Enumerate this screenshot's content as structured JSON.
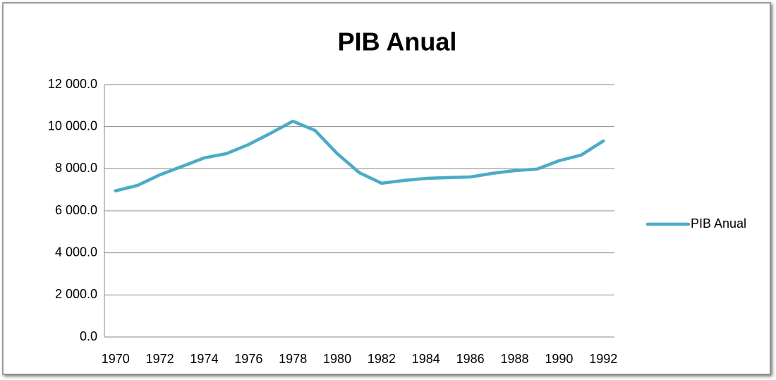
{
  "chart_data": {
    "type": "line",
    "title": "PIB Anual",
    "categories": [
      "1970",
      null,
      "1972",
      null,
      "1974",
      null,
      "1976",
      null,
      "1978",
      null,
      "1980",
      null,
      "1982",
      null,
      "1984",
      null,
      "1986",
      null,
      "1988",
      null,
      "1990",
      null,
      "1992"
    ],
    "series": [
      {
        "name": "PIB Anual",
        "color": "#4bacc6",
        "values": [
          6950,
          7210,
          7710,
          8110,
          8515,
          8716,
          9150,
          9690,
          10260,
          9820,
          8716,
          7810,
          7310,
          7440,
          7540,
          7580,
          7610,
          7780,
          7910,
          7980,
          8380,
          8650,
          9320
        ]
      }
    ],
    "ylim": [
      0,
      12000
    ],
    "yticks": [
      {
        "value": 0,
        "label": "0.0"
      },
      {
        "value": 2000,
        "label": "2 000.0"
      },
      {
        "value": 4000,
        "label": "4 000.0"
      },
      {
        "value": 6000,
        "label": "6 000.0"
      },
      {
        "value": 8000,
        "label": "8 000.0"
      },
      {
        "value": 10000,
        "label": "10 000.0"
      },
      {
        "value": 12000,
        "label": "12 000.0"
      }
    ],
    "grid": true,
    "legend": "right"
  }
}
